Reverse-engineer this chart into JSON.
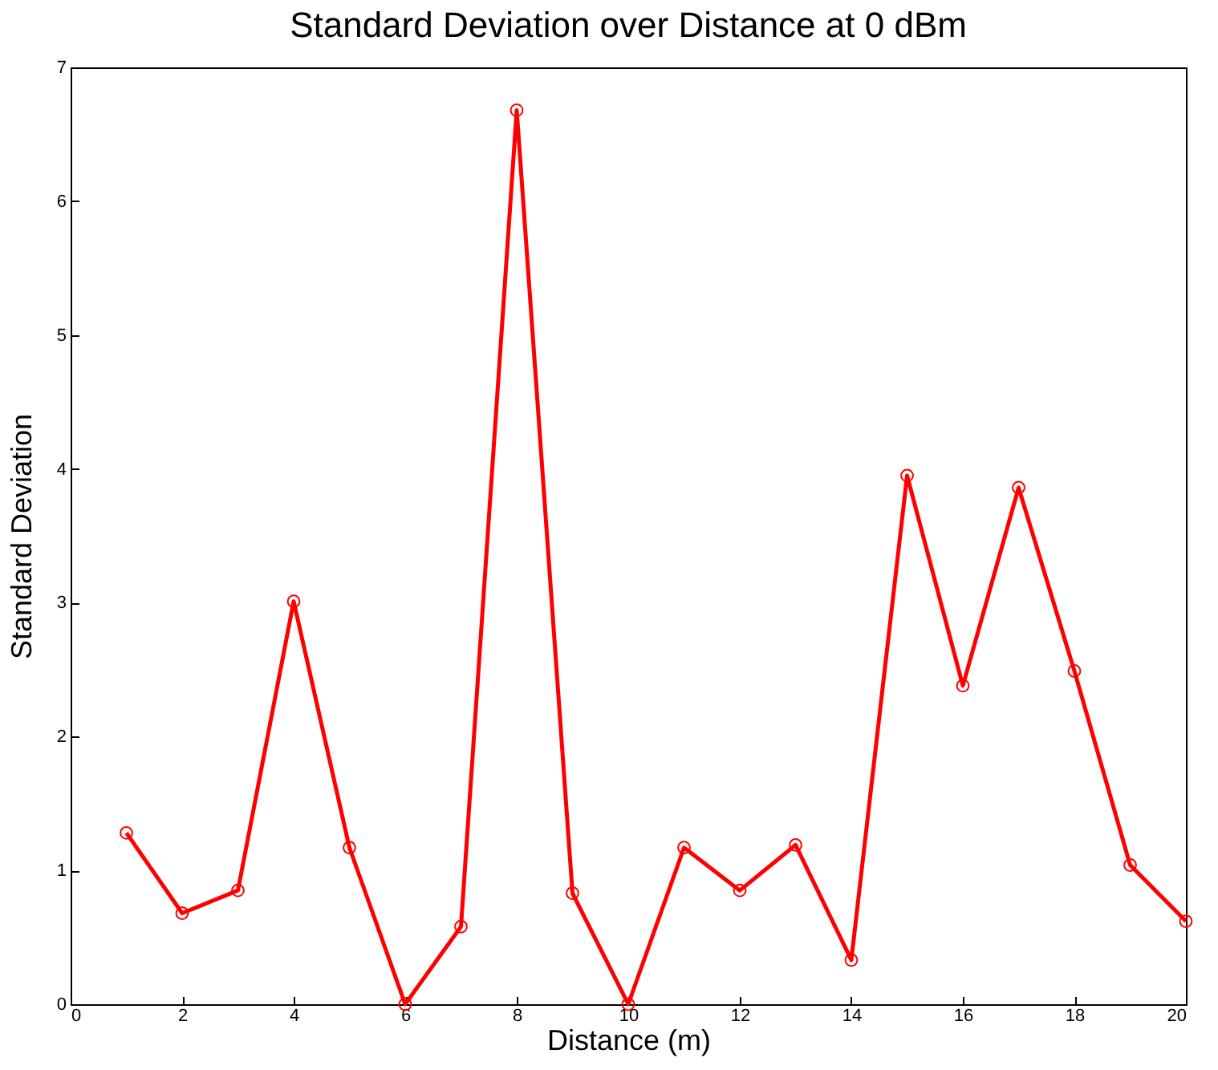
{
  "chart_data": {
    "type": "line",
    "title": "Standard Deviation over Distance at 0 dBm",
    "xlabel": "Distance (m)",
    "ylabel": "Standard Deviation",
    "x": [
      1,
      2,
      3,
      4,
      5,
      6,
      7,
      8,
      9,
      10,
      11,
      12,
      13,
      14,
      15,
      16,
      17,
      18,
      19,
      20
    ],
    "series": [
      {
        "color": "#ff0000",
        "values": [
          1.28,
          0.68,
          0.85,
          3.01,
          1.17,
          0.0,
          0.58,
          6.68,
          0.83,
          0.0,
          1.17,
          0.85,
          1.19,
          0.33,
          3.95,
          2.38,
          3.86,
          2.49,
          1.04,
          0.62
        ]
      }
    ],
    "xlim": [
      0,
      20
    ],
    "xticks": [
      0,
      2,
      4,
      6,
      8,
      10,
      12,
      14,
      16,
      18,
      20
    ],
    "ylim": [
      0,
      7
    ],
    "yticks": [
      0,
      1,
      2,
      3,
      4,
      5,
      6,
      7
    ],
    "marker": "circle",
    "line_style": "solid",
    "grid": false,
    "legend": false
  }
}
